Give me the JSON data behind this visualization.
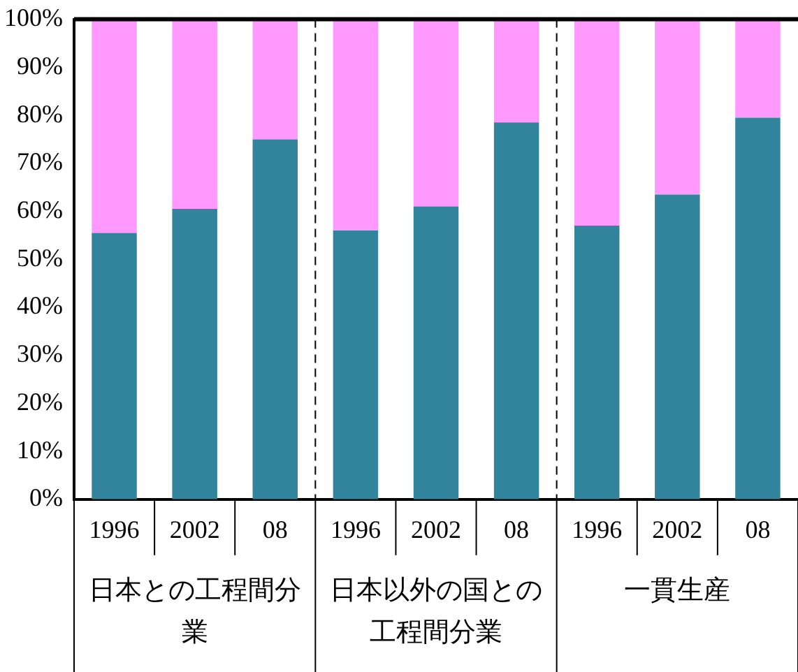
{
  "chart_data": {
    "type": "bar",
    "stacked": true,
    "categories": [
      "1996",
      "2002",
      "08",
      "1996",
      "2002",
      "08",
      "1996",
      "2002",
      "08"
    ],
    "series": [
      {
        "color": "#31849b",
        "values": [
          55.5,
          60.5,
          75,
          56,
          61,
          78.5,
          57,
          63.5,
          79.5
        ]
      },
      {
        "color": "#ff99ff",
        "values": [
          44.5,
          39.5,
          25,
          44,
          39,
          21.5,
          43,
          36.5,
          20.5
        ]
      }
    ],
    "ylim": [
      0,
      100
    ],
    "yticks": [
      {
        "value": 0,
        "label": "0%"
      },
      {
        "value": 10,
        "label": "10%"
      },
      {
        "value": 20,
        "label": "20%"
      },
      {
        "value": 30,
        "label": "30%"
      },
      {
        "value": 40,
        "label": "40%"
      },
      {
        "value": 50,
        "label": "50%"
      },
      {
        "value": 60,
        "label": "60%"
      },
      {
        "value": 70,
        "label": "70%"
      },
      {
        "value": 80,
        "label": "80%"
      },
      {
        "value": 90,
        "label": "90%"
      },
      {
        "value": 100,
        "label": "100%"
      }
    ],
    "annotations": [
      "日本との工程間分業",
      "日本以外の国との工程間分業",
      "一貫生産"
    ]
  }
}
